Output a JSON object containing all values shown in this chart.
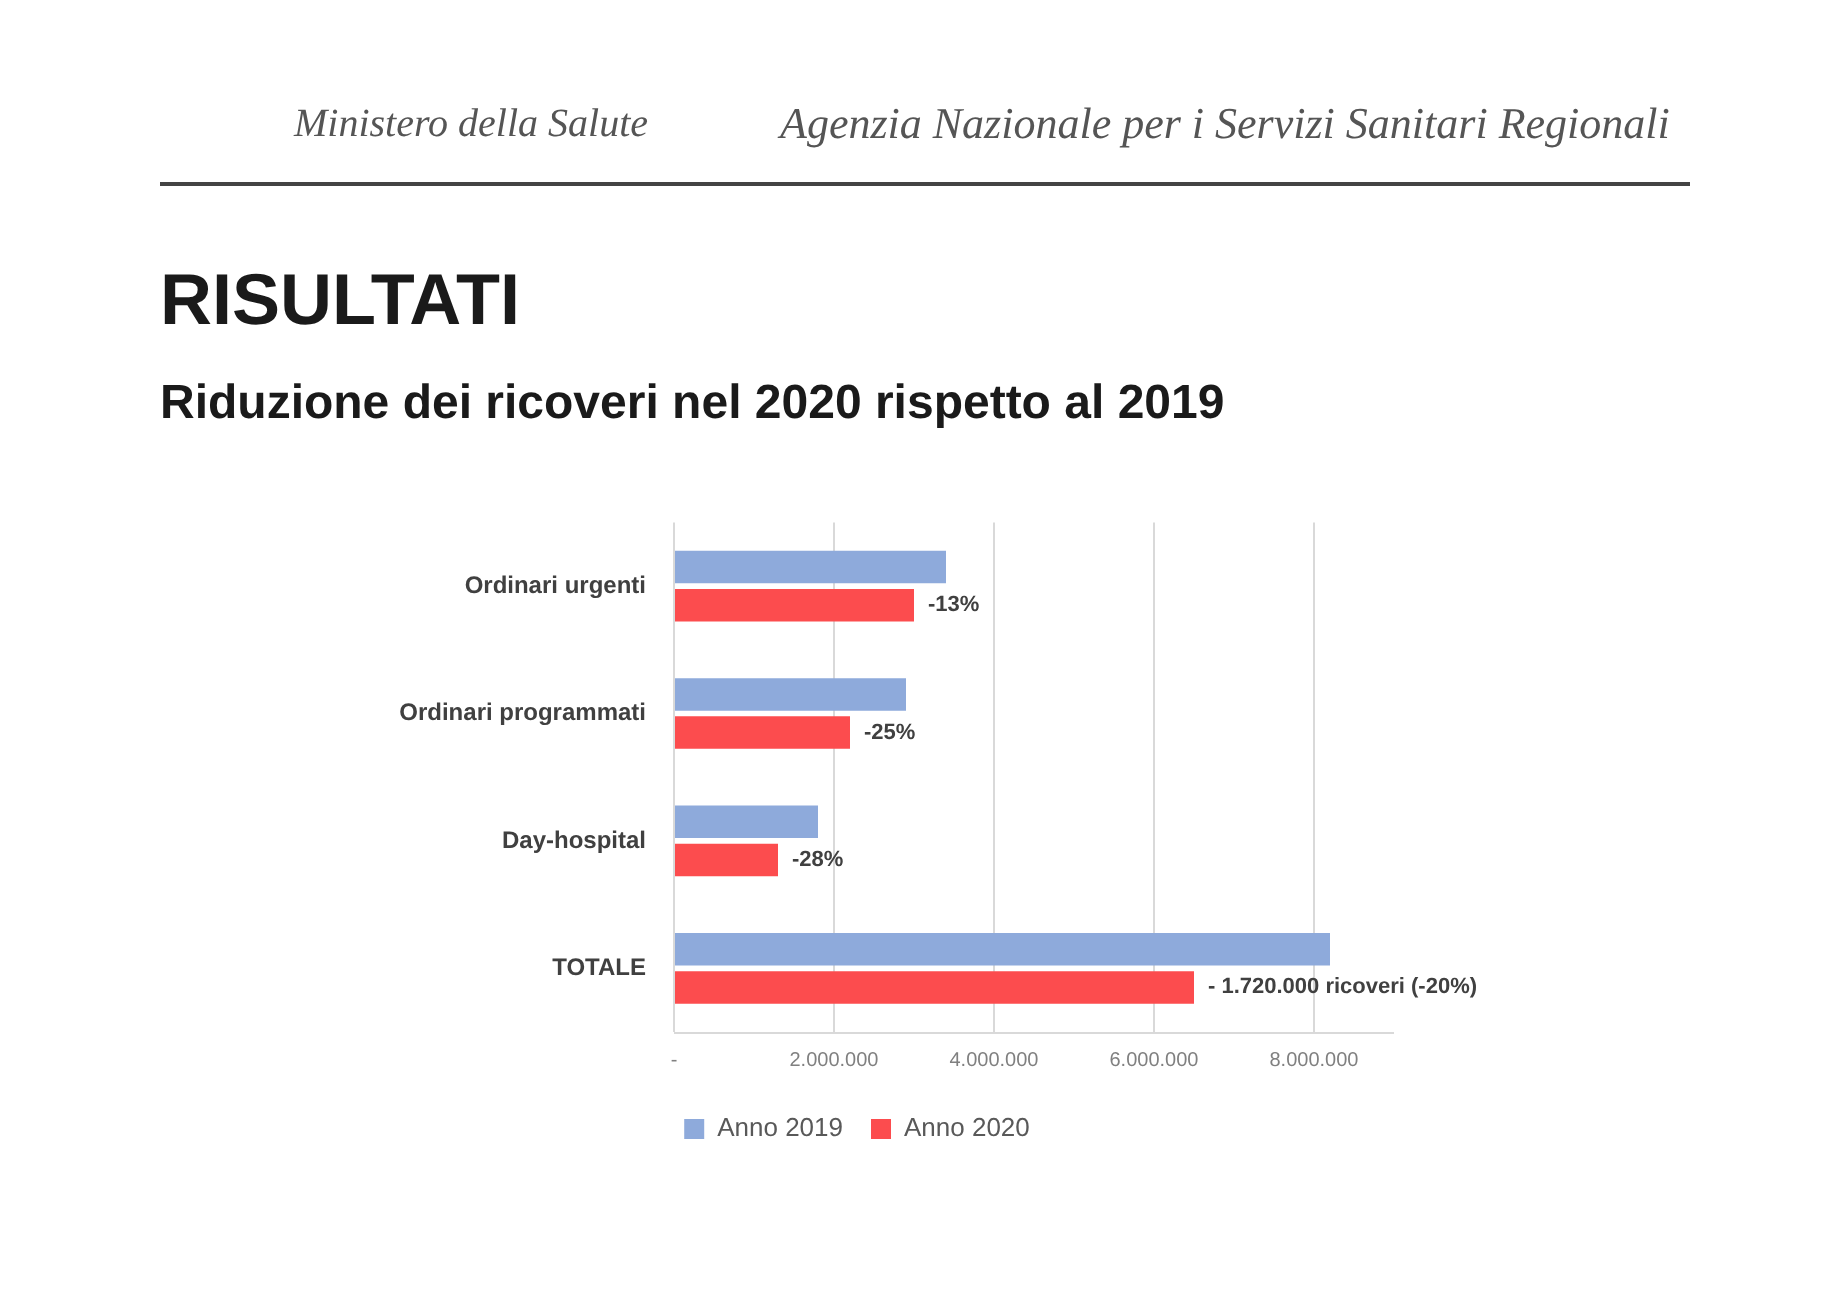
{
  "chart_data": {
    "type": "bar",
    "orientation": "horizontal",
    "title": "RISULTATI",
    "subtitle": "Riduzione dei ricoveri nel 2020 rispetto al 2019",
    "annotations": [
      "Ministero della Salute",
      "Agenzia Nazionale per i Servizi Sanitari Regionali",
      {
        "text": "-13%",
        "x": 3000000,
        "y": "Ordinari urgenti"
      },
      {
        "text": "-25%",
        "x": 2200000,
        "y": "Ordinari programmati"
      },
      {
        "text": "-28%",
        "x": 1300000,
        "y": "Day-hospital"
      },
      {
        "text": "- 1.720.000 ricoveri (-20%)",
        "x": 6500000,
        "y": "TOTALE"
      }
    ],
    "categories": [
      "Ordinari urgenti",
      "Ordinari programmati",
      "Day-hospital",
      "TOTALE"
    ],
    "series": [
      {
        "name": "Anno 2019",
        "color": "#8eaadb",
        "values": [
          3400000,
          2900000,
          1800000,
          8200000
        ]
      },
      {
        "name": "Anno 2020",
        "color": "#fc4c4e",
        "values": [
          3000000,
          2200000,
          1300000,
          6500000
        ]
      }
    ],
    "xlim": [
      0,
      9000000
    ],
    "xticks": [
      {
        "value": 0,
        "label": "-"
      },
      {
        "value": 2000000,
        "label": "2.000.000"
      },
      {
        "value": 4000000,
        "label": "4.000.000"
      },
      {
        "value": 6000000,
        "label": "6.000.000"
      },
      {
        "value": 8000000,
        "label": "8.000.000"
      }
    ],
    "grid": "x",
    "legend": "bottom"
  }
}
